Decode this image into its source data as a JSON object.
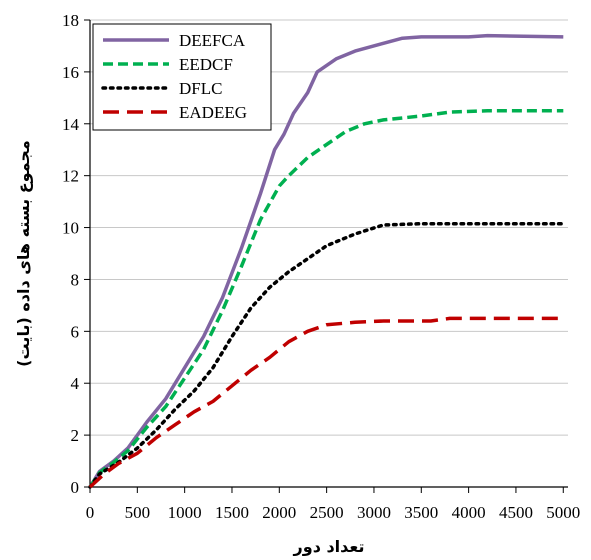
{
  "chart_data": {
    "type": "line",
    "xlabel": "تعداد دور",
    "ylabel": "مجموع بسته های داده (بایت)",
    "xlim": [
      0,
      5050
    ],
    "ylim": [
      0,
      18
    ],
    "xticks": [
      "0",
      "500",
      "1000",
      "1500",
      "2000",
      "2500",
      "3000",
      "3500",
      "4000",
      "4500",
      "5000"
    ],
    "yticks": [
      "0",
      "2",
      "4",
      "6",
      "8",
      "10",
      "12",
      "14",
      "16",
      "18"
    ],
    "grid": "horizontal",
    "legend_position": "top-left",
    "series": [
      {
        "name": "DEEFCA",
        "color": "#8064a2",
        "dash": "solid",
        "points": [
          [
            0,
            0
          ],
          [
            100,
            0.6
          ],
          [
            250,
            1.0
          ],
          [
            400,
            1.5
          ],
          [
            600,
            2.5
          ],
          [
            800,
            3.4
          ],
          [
            1000,
            4.6
          ],
          [
            1200,
            5.8
          ],
          [
            1400,
            7.3
          ],
          [
            1600,
            9.2
          ],
          [
            1800,
            11.3
          ],
          [
            1950,
            13.0
          ],
          [
            2050,
            13.6
          ],
          [
            2150,
            14.4
          ],
          [
            2300,
            15.2
          ],
          [
            2400,
            16.0
          ],
          [
            2600,
            16.5
          ],
          [
            2800,
            16.8
          ],
          [
            3100,
            17.1
          ],
          [
            3300,
            17.3
          ],
          [
            3500,
            17.35
          ],
          [
            4000,
            17.35
          ],
          [
            4200,
            17.4
          ],
          [
            5000,
            17.35
          ]
        ]
      },
      {
        "name": "EEDCF",
        "color": "#00b050",
        "dash": "dashed",
        "points": [
          [
            0,
            0
          ],
          [
            100,
            0.55
          ],
          [
            250,
            0.95
          ],
          [
            400,
            1.4
          ],
          [
            600,
            2.3
          ],
          [
            800,
            3.1
          ],
          [
            1000,
            4.2
          ],
          [
            1200,
            5.3
          ],
          [
            1400,
            6.8
          ],
          [
            1600,
            8.5
          ],
          [
            1800,
            10.3
          ],
          [
            2000,
            11.6
          ],
          [
            2100,
            12.0
          ],
          [
            2300,
            12.7
          ],
          [
            2500,
            13.2
          ],
          [
            2700,
            13.7
          ],
          [
            2900,
            14.0
          ],
          [
            3100,
            14.15
          ],
          [
            3500,
            14.3
          ],
          [
            3800,
            14.45
          ],
          [
            4200,
            14.5
          ],
          [
            5000,
            14.5
          ]
        ]
      },
      {
        "name": "DFLC",
        "color": "#000000",
        "dash": "dotted",
        "points": [
          [
            0,
            0
          ],
          [
            100,
            0.5
          ],
          [
            300,
            0.95
          ],
          [
            500,
            1.5
          ],
          [
            700,
            2.2
          ],
          [
            900,
            3.0
          ],
          [
            1100,
            3.7
          ],
          [
            1300,
            4.6
          ],
          [
            1500,
            5.8
          ],
          [
            1700,
            6.9
          ],
          [
            1900,
            7.7
          ],
          [
            2100,
            8.3
          ],
          [
            2300,
            8.8
          ],
          [
            2500,
            9.3
          ],
          [
            2800,
            9.75
          ],
          [
            3100,
            10.1
          ],
          [
            3500,
            10.15
          ],
          [
            4000,
            10.15
          ],
          [
            5000,
            10.15
          ]
        ]
      },
      {
        "name": "EADEEG",
        "color": "#c00000",
        "dash": "longdash",
        "points": [
          [
            0,
            0
          ],
          [
            150,
            0.5
          ],
          [
            300,
            0.9
          ],
          [
            500,
            1.3
          ],
          [
            700,
            1.9
          ],
          [
            900,
            2.4
          ],
          [
            1100,
            2.9
          ],
          [
            1300,
            3.3
          ],
          [
            1500,
            3.9
          ],
          [
            1700,
            4.5
          ],
          [
            1900,
            5.0
          ],
          [
            2100,
            5.6
          ],
          [
            2300,
            6.0
          ],
          [
            2500,
            6.25
          ],
          [
            2800,
            6.35
          ],
          [
            3100,
            6.4
          ],
          [
            3600,
            6.4
          ],
          [
            3800,
            6.5
          ],
          [
            5000,
            6.5
          ]
        ]
      }
    ]
  }
}
